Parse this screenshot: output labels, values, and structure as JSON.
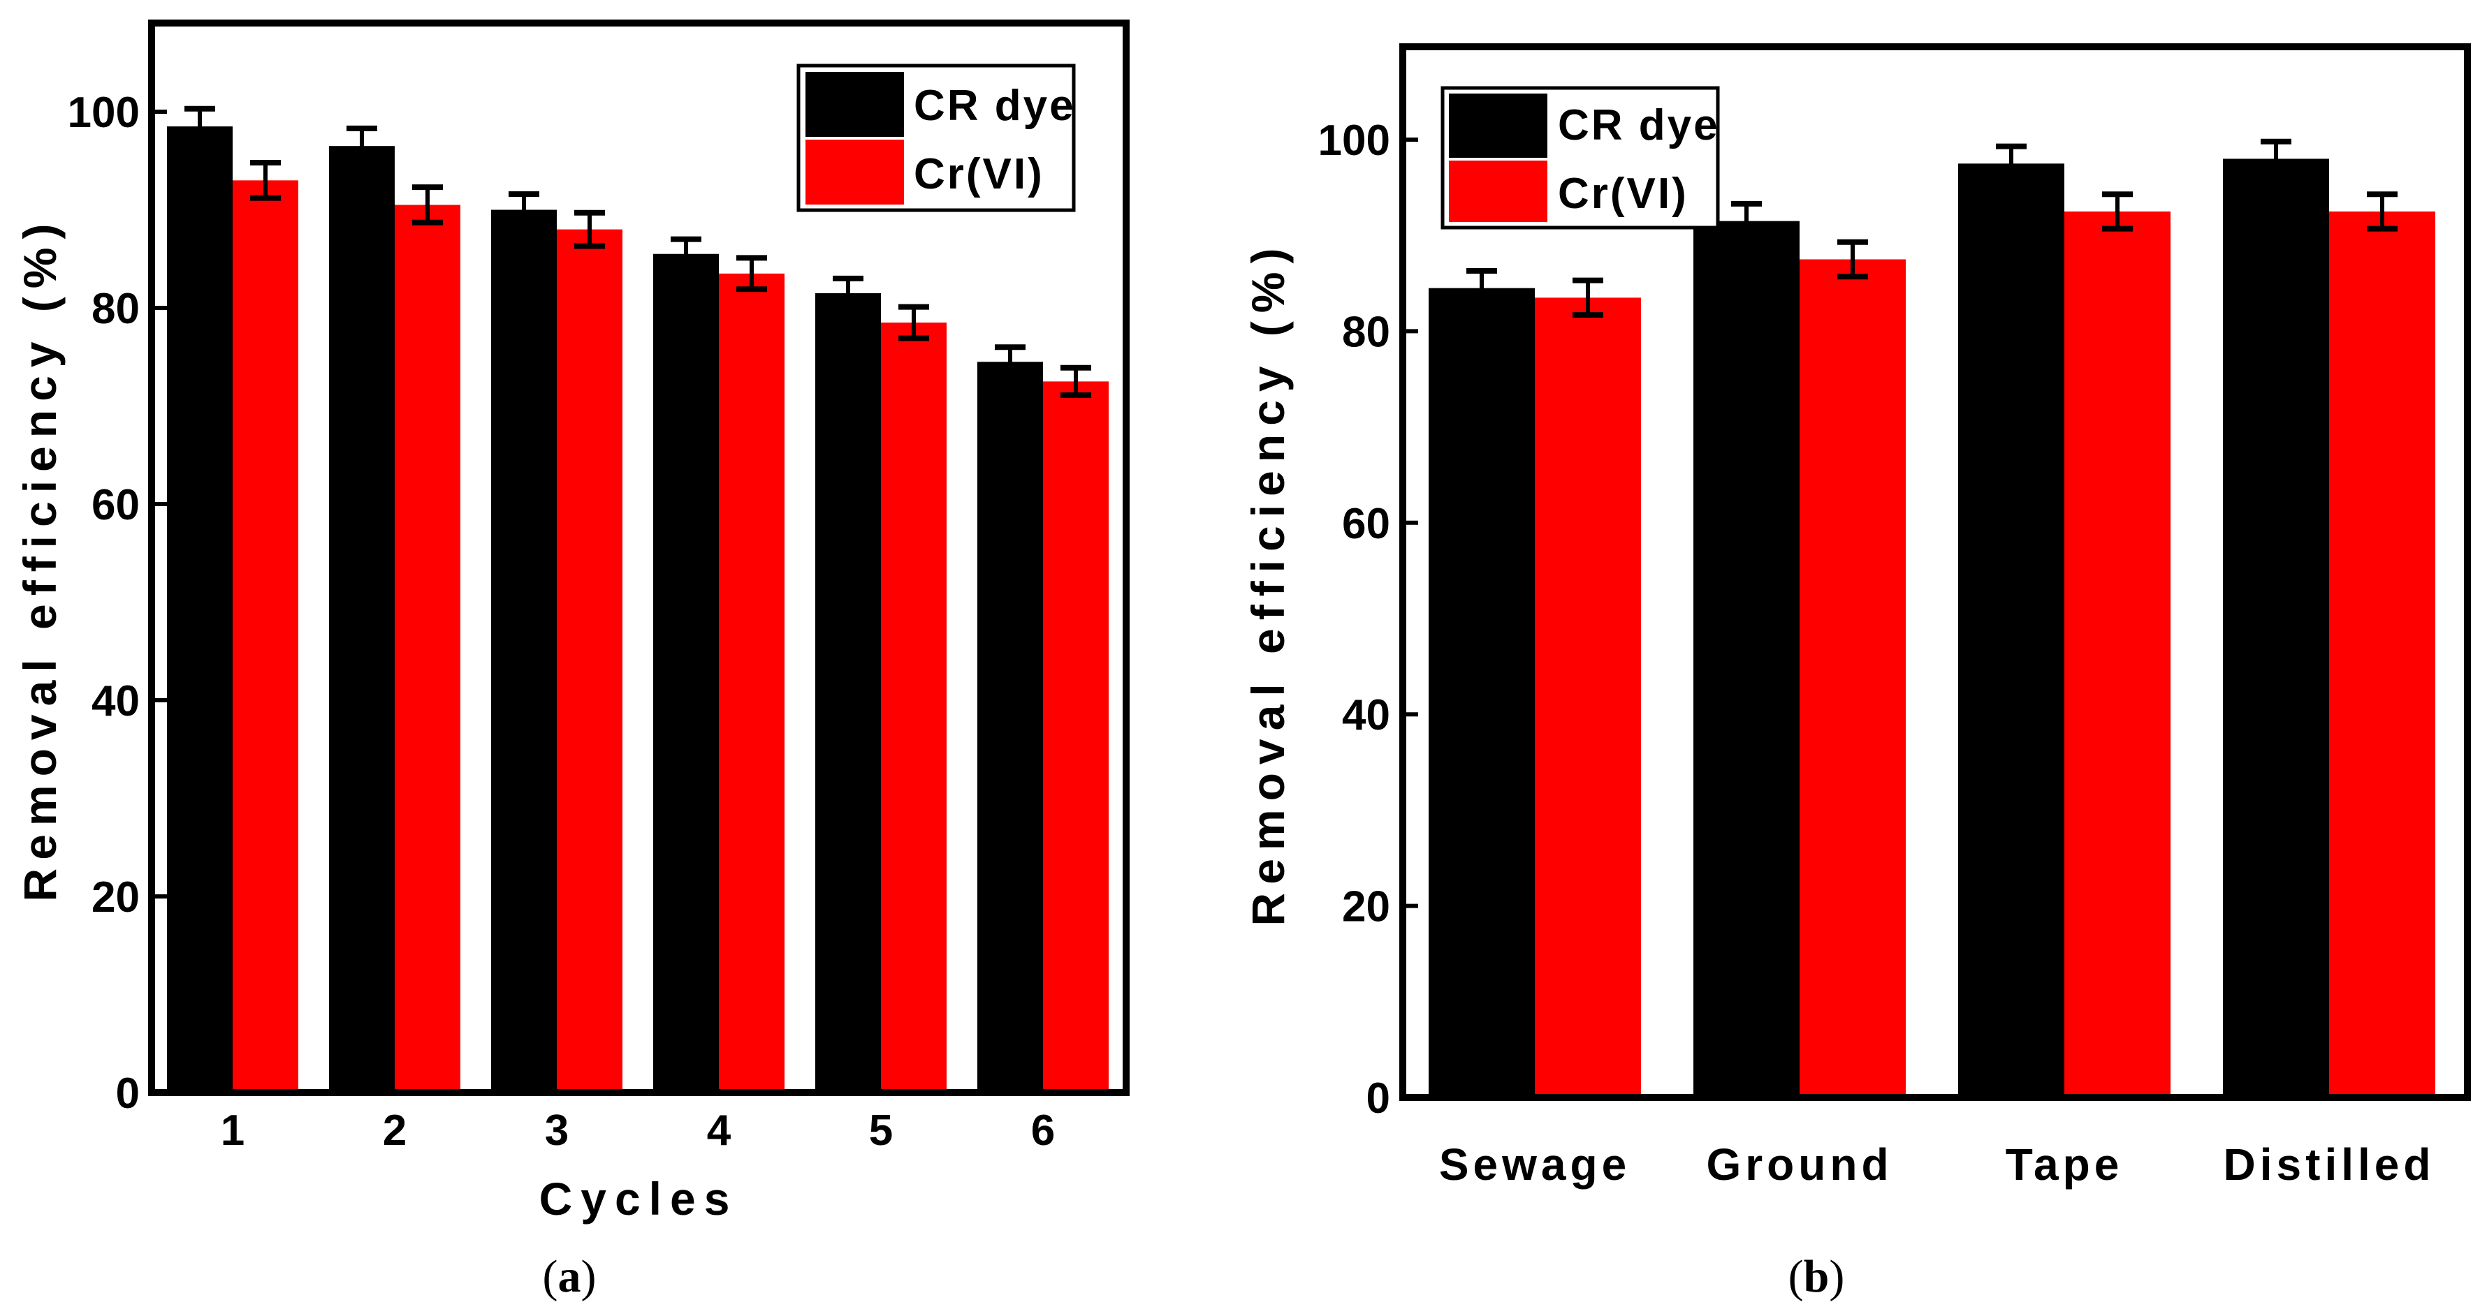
{
  "colors": {
    "series1": "#000000",
    "series2": "#ff0000"
  },
  "chart_data": [
    {
      "type": "bar",
      "panel_label": "a",
      "categories": [
        "1",
        "2",
        "3",
        "4",
        "5",
        "6"
      ],
      "series": [
        {
          "name": "CR dye",
          "values": [
            98.5,
            96.5,
            90,
            85.5,
            81.5,
            74.5
          ],
          "errors": [
            1.8,
            1.8,
            1.6,
            1.5,
            1.5,
            1.5
          ],
          "color": "#000000"
        },
        {
          "name": "Cr(VI)",
          "values": [
            93,
            90.5,
            88,
            83.5,
            78.5,
            72.5
          ],
          "errors": [
            1.8,
            1.8,
            1.7,
            1.6,
            1.6,
            1.4
          ],
          "color": "#ff0000"
        }
      ],
      "xlabel": "Cycles",
      "ylabel": "Removal efficiency (%)",
      "ylim": [
        0,
        110
      ],
      "yticks": [
        "0",
        "20",
        "40",
        "60",
        "80",
        "100"
      ],
      "legend_position": "top-right",
      "grid": false
    },
    {
      "type": "bar",
      "panel_label": "b",
      "categories": [
        "Sewage",
        "Ground",
        "Tape",
        "Distilled"
      ],
      "series": [
        {
          "name": "CR dye",
          "values": [
            84.5,
            91.5,
            97.5,
            98
          ],
          "errors": [
            1.8,
            1.8,
            1.8,
            1.8
          ],
          "color": "#000000"
        },
        {
          "name": "Cr(VI)",
          "values": [
            83.5,
            87.5,
            92.5,
            92.5
          ],
          "errors": [
            1.8,
            1.8,
            1.8,
            1.8
          ],
          "color": "#ff0000"
        }
      ],
      "xlabel": "",
      "ylabel": "Removal efficiency (%)",
      "ylim": [
        0,
        111
      ],
      "yticks": [
        "0",
        "20",
        "40",
        "60",
        "80",
        "100"
      ],
      "legend_position": "top-left",
      "grid": false
    }
  ]
}
